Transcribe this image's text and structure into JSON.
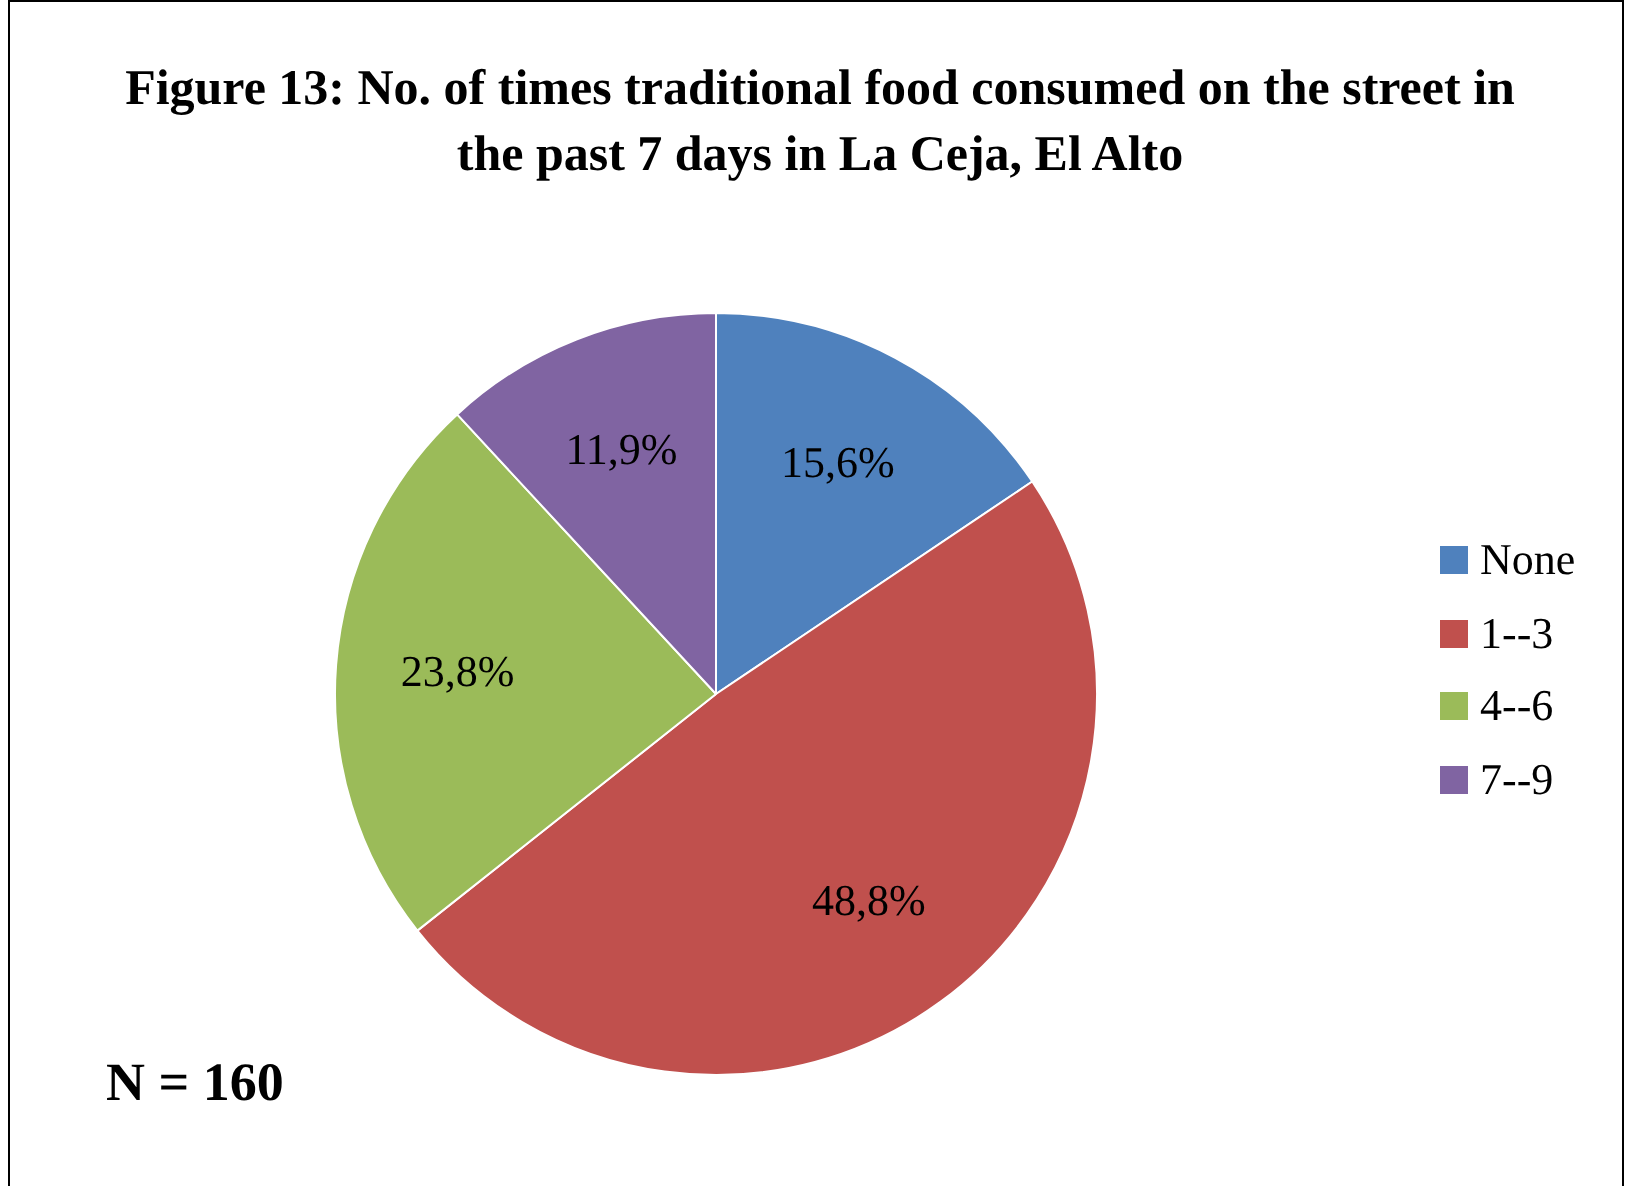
{
  "chart_data": {
    "type": "pie",
    "title": "Figure 13: No. of times traditional food consumed on the street in the past 7 days in La Ceja, El Alto",
    "categories": [
      "None",
      "1--3",
      "4--6",
      "7--9"
    ],
    "values": [
      15.6,
      48.8,
      23.8,
      11.9
    ],
    "value_labels": [
      "15,6%",
      "48,8%",
      "23,8%",
      "11,9%"
    ],
    "colors": [
      "#4f81bd",
      "#c0504d",
      "#9bbb59",
      "#8064a2"
    ],
    "legend": "right",
    "annotations": [
      "N = 160"
    ]
  }
}
